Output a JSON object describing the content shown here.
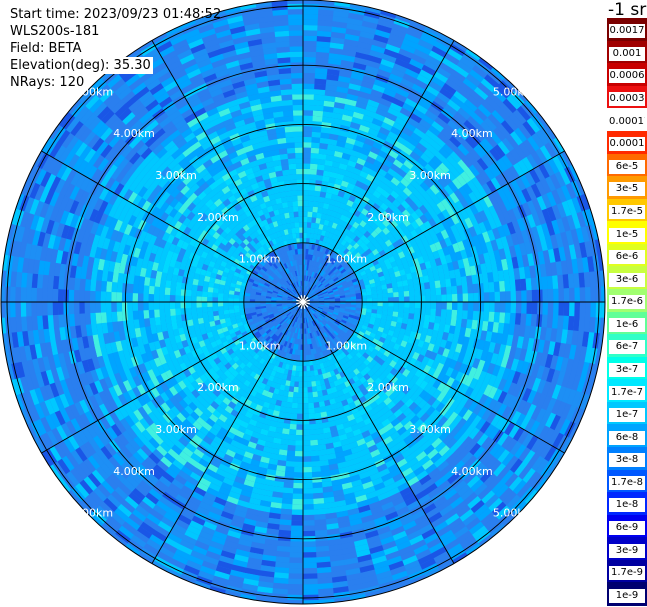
{
  "header": {
    "start_time": "Start time: 2023/09/23 01:48:52",
    "device": "WLS200s-181",
    "field": "Field: BETA",
    "elevation": "Elevation(deg): 35.30",
    "nrays": "NRays: 120"
  },
  "unit_label": "-1 sr",
  "range_ring_labels": [
    "1.00km",
    "2.00km",
    "3.00km",
    "4.00km",
    "5.00km"
  ],
  "colorbar": {
    "labels": [
      "0.0017",
      "0.001",
      "0.0006",
      "0.0003",
      "0.00017",
      "0.0001",
      "6e-5",
      "3e-5",
      "1.7e-5",
      "1e-5",
      "6e-6",
      "3e-6",
      "1.7e-6",
      "1e-6",
      "6e-7",
      "3e-7",
      "1.7e-7",
      "1e-7",
      "6e-8",
      "3e-8",
      "1.7e-8",
      "1e-8",
      "6e-9",
      "3e-9",
      "1.7e-9",
      "1e-9"
    ],
    "colors": [
      "#7a0000",
      "#a00000",
      "#c80000",
      "#ec1010",
      "#ffffff",
      "#ff2a00",
      "#ff6a00",
      "#ff9a00",
      "#ffc800",
      "#ffff00",
      "#e0ff20",
      "#c8ff40",
      "#a0ff70",
      "#60ff98",
      "#30ffc8",
      "#00ffe8",
      "#00e8ff",
      "#00c8ff",
      "#00a4ff",
      "#0080ff",
      "#0058ff",
      "#0028ff",
      "#0000f0",
      "#0000c8",
      "#0000a0",
      "#000070"
    ]
  },
  "chart_data": {
    "type": "heatmap",
    "projection": "polar PPI",
    "field": "BETA",
    "elevation_deg": 35.3,
    "n_rays": 120,
    "range_rings_km": [
      1,
      2,
      3,
      4,
      5
    ],
    "max_range_km": 5.1,
    "color_scale": "log",
    "colorbar_range": [
      1e-09,
      0.0017
    ],
    "approx_level_by_range_km": [
      {
        "range": [
          0.0,
          1.0
        ],
        "level": "1e-7 to 6e-8"
      },
      {
        "range": [
          1.0,
          2.5
        ],
        "level": "1.7e-7 to 1e-7"
      },
      {
        "range": [
          2.5,
          3.6
        ],
        "level": "1.7e-7 to 6e-8"
      },
      {
        "range": [
          3.6,
          5.1
        ],
        "level": "6e-8 to 1.7e-8"
      }
    ]
  }
}
